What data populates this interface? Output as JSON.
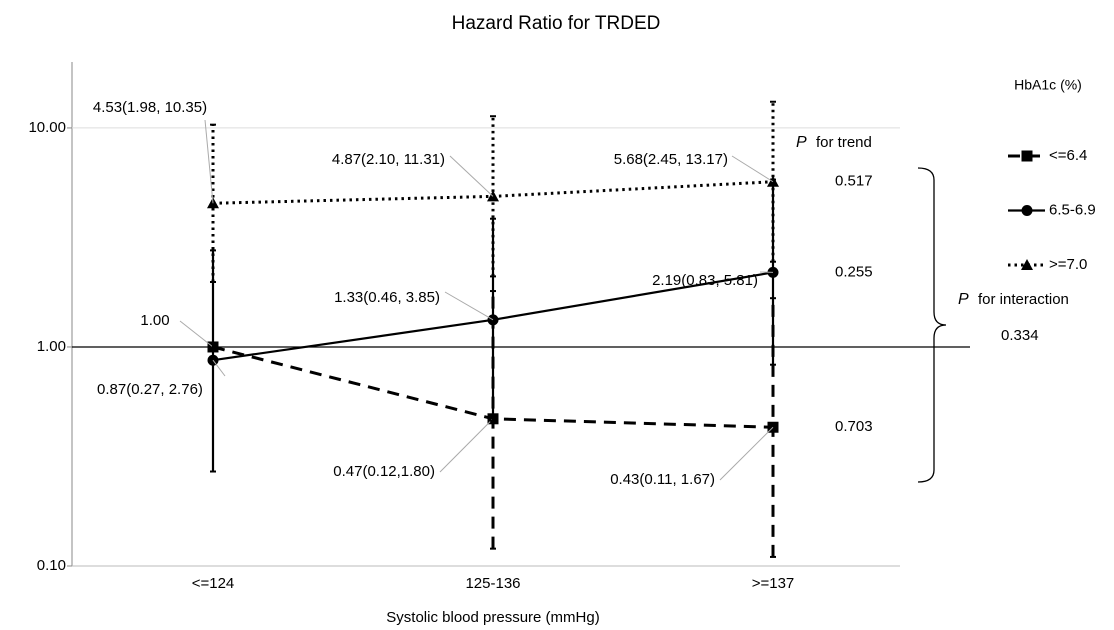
{
  "chart_data": {
    "type": "line",
    "title": "Hazard Ratio for TRDED",
    "x_label": "Systolic blood pressure (mmHg)",
    "categories": [
      "<=124",
      "125-136",
      ">=137"
    ],
    "log_scale": true,
    "ylim": [
      0.1,
      20
    ],
    "yticks": [
      {
        "value": 0.1,
        "label": "0.10"
      },
      {
        "value": 1,
        "label": "1.00"
      },
      {
        "value": 10,
        "label": "10.00"
      }
    ],
    "reference_line": 1,
    "grid": true,
    "legend_title": "HbA1c (%)",
    "legend": "right",
    "p_symbol": "P",
    "p_trend_label": "for trend",
    "p_interaction_label": "for interaction",
    "p_interaction": 0.334,
    "series": [
      {
        "name": "<=6.4",
        "color": "#000000",
        "line_style": "dashed",
        "marker": "square",
        "values": [
          1.0,
          0.47,
          0.43
        ],
        "lower": [
          null,
          0.12,
          0.11
        ],
        "upper": [
          null,
          1.8,
          1.67
        ],
        "value_labels": [
          "1.00",
          "0.47(0.12,1.80)",
          "0.43(0.11, 1.67)"
        ],
        "p_trend": 0.703
      },
      {
        "name": "6.5-6.9",
        "color": "#000000",
        "line_style": "solid",
        "marker": "circle",
        "values": [
          0.87,
          1.33,
          2.19
        ],
        "lower": [
          0.27,
          0.46,
          0.83
        ],
        "upper": [
          2.76,
          3.85,
          5.81
        ],
        "value_labels": [
          "0.87(0.27, 2.76)",
          "1.33(0.46, 3.85)",
          "2.19(0.83, 5.81)"
        ],
        "p_trend": 0.255
      },
      {
        "name": ">=7.0",
        "color": "#000000",
        "line_style": "dotted",
        "marker": "triangle",
        "values": [
          4.53,
          4.87,
          5.68
        ],
        "lower": [
          1.98,
          2.1,
          2.45
        ],
        "upper": [
          10.35,
          11.31,
          13.17
        ],
        "value_labels": [
          "4.53(1.98, 10.35)",
          "4.87(2.10, 11.31)",
          "5.68(2.45, 13.17)"
        ],
        "p_trend": 0.517
      }
    ]
  }
}
